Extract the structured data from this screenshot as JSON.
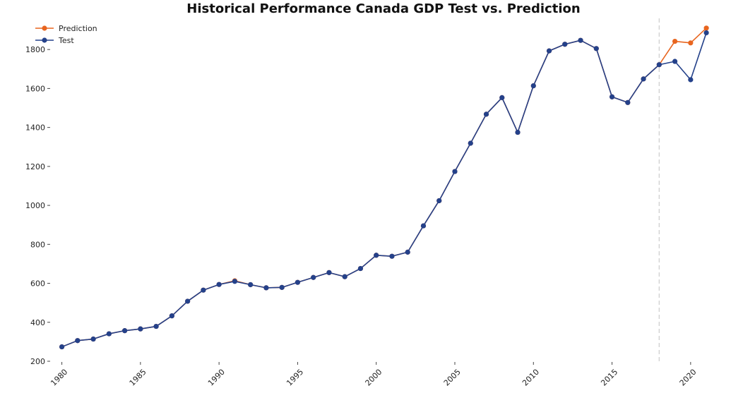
{
  "chart_data": {
    "type": "line",
    "title": "Historical Performance Canada GDP Test vs. Prediction",
    "xlabel": "",
    "ylabel": "",
    "x": [
      1980,
      1981,
      1982,
      1983,
      1984,
      1985,
      1986,
      1987,
      1988,
      1989,
      1990,
      1991,
      1992,
      1993,
      1994,
      1995,
      1996,
      1997,
      1998,
      1999,
      2000,
      2001,
      2002,
      2003,
      2004,
      2005,
      2006,
      2007,
      2008,
      2009,
      2010,
      2011,
      2012,
      2013,
      2014,
      2015,
      2016,
      2017,
      2018,
      2019,
      2020,
      2021
    ],
    "xlim": [
      1979.3,
      2021.4
    ],
    "ylim": [
      200,
      1960
    ],
    "xticks": [
      1980,
      1985,
      1990,
      1995,
      2000,
      2005,
      2010,
      2015,
      2020
    ],
    "yticks": [
      200,
      400,
      600,
      800,
      1000,
      1200,
      1400,
      1600,
      1800
    ],
    "grid": false,
    "legend_position": "top-left",
    "vline_x": 2018,
    "series": [
      {
        "name": "Prediction",
        "color": "#e8651f",
        "values": [
          274,
          306,
          314,
          341,
          357,
          366,
          379,
          433,
          508,
          565,
          594,
          613,
          593,
          577,
          579,
          605,
          630,
          655,
          634,
          676,
          744,
          739,
          760,
          895,
          1024,
          1174,
          1319,
          1468,
          1553,
          1375,
          1614,
          1793,
          1827,
          1847,
          1805,
          1557,
          1528,
          1649,
          1722,
          1842,
          1834,
          1910
        ]
      },
      {
        "name": "Test",
        "color": "#24418a",
        "values": [
          274,
          306,
          314,
          341,
          357,
          366,
          379,
          433,
          508,
          565,
          594,
          610,
          593,
          577,
          579,
          605,
          630,
          655,
          634,
          676,
          744,
          739,
          760,
          895,
          1024,
          1174,
          1319,
          1468,
          1553,
          1375,
          1614,
          1793,
          1827,
          1847,
          1805,
          1557,
          1528,
          1649,
          1722,
          1739,
          1645,
          1886
        ]
      }
    ]
  }
}
